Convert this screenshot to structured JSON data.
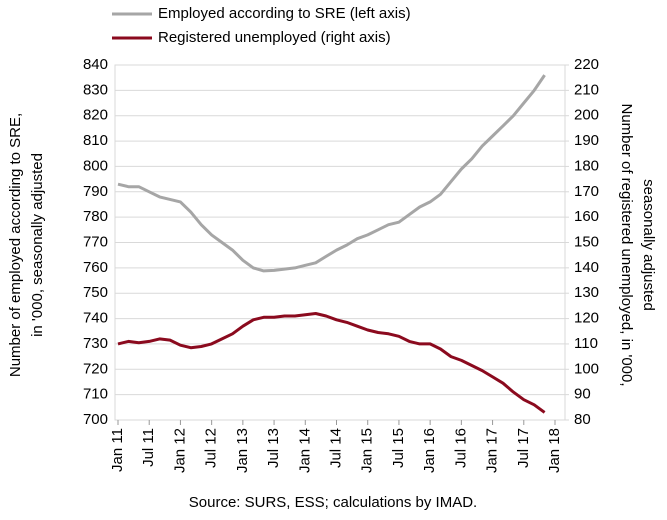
{
  "chart_data": {
    "type": "line",
    "legend": "top",
    "grid": true,
    "y_label": [
      "Number of employed according to SRE,",
      "in '000, seasonally adjusted"
    ],
    "y2_label": [
      "Number of registered unemployed, in '000,",
      "seasonally adjusted"
    ],
    "source": "Source: SURS, ESS; calculations by IMAD.",
    "xlim": [
      0,
      84
    ],
    "xticks": [
      {
        "value": 0,
        "label": "Jan 11"
      },
      {
        "value": 6,
        "label": "Jul 11"
      },
      {
        "value": 12,
        "label": "Jan 12"
      },
      {
        "value": 18,
        "label": "Jul 12"
      },
      {
        "value": 24,
        "label": "Jan 13"
      },
      {
        "value": 30,
        "label": "Jul 13"
      },
      {
        "value": 36,
        "label": "Jan 14"
      },
      {
        "value": 42,
        "label": "Jul 14"
      },
      {
        "value": 48,
        "label": "Jan 15"
      },
      {
        "value": 54,
        "label": "Jul 15"
      },
      {
        "value": 60,
        "label": "Jan 16"
      },
      {
        "value": 66,
        "label": "Jul 16"
      },
      {
        "value": 72,
        "label": "Jan 17"
      },
      {
        "value": 78,
        "label": "Jul 17"
      },
      {
        "value": 84,
        "label": "Jan 18"
      }
    ],
    "ylim": [
      700,
      840
    ],
    "yticks": [
      700,
      710,
      720,
      730,
      740,
      750,
      760,
      770,
      780,
      790,
      800,
      810,
      820,
      830,
      840
    ],
    "y2lim": [
      80,
      220
    ],
    "y2ticks": [
      80,
      90,
      100,
      110,
      120,
      130,
      140,
      150,
      160,
      170,
      180,
      190,
      200,
      210,
      220
    ],
    "series": [
      {
        "name": "Employed according to SRE (left axis)",
        "color": "#a6a6a6",
        "axis": "y",
        "x": [
          0,
          2,
          4,
          6,
          8,
          10,
          12,
          14,
          16,
          18,
          20,
          22,
          24,
          26,
          28,
          30,
          32,
          34,
          36,
          38,
          40,
          42,
          44,
          46,
          48,
          50,
          52,
          54,
          56,
          58,
          60,
          62,
          64,
          66,
          68,
          70,
          72,
          74,
          76,
          78,
          80,
          82
        ],
        "values": [
          793,
          792,
          792,
          790,
          788,
          787,
          786,
          782,
          777,
          773,
          770,
          767,
          763,
          760,
          758.8,
          759,
          759.5,
          760,
          761,
          762,
          764.5,
          767,
          769,
          771.5,
          773,
          775,
          777,
          778,
          781,
          784,
          786,
          789,
          794,
          799,
          803,
          808,
          812,
          816,
          820,
          825,
          830,
          836
        ]
      },
      {
        "name": "Registered unemployed (right axis)",
        "color": "#8b0a1e",
        "axis": "y2",
        "x": [
          0,
          2,
          4,
          6,
          8,
          10,
          12,
          14,
          16,
          18,
          20,
          22,
          24,
          26,
          28,
          30,
          32,
          34,
          36,
          38,
          40,
          42,
          44,
          46,
          48,
          50,
          52,
          54,
          56,
          58,
          60,
          62,
          64,
          66,
          68,
          70,
          72,
          74,
          76,
          78,
          80,
          82
        ],
        "values": [
          110,
          111,
          110.5,
          111,
          112,
          111.5,
          109.5,
          108.5,
          109,
          110,
          112,
          114,
          117,
          119.5,
          120.5,
          120.5,
          121,
          121,
          121.5,
          122,
          121,
          119.5,
          118.5,
          117,
          115.5,
          114.5,
          114,
          113,
          111,
          110,
          110,
          108,
          105,
          103.5,
          101.5,
          99.5,
          97,
          94.5,
          91,
          88,
          86,
          83
        ]
      }
    ]
  }
}
